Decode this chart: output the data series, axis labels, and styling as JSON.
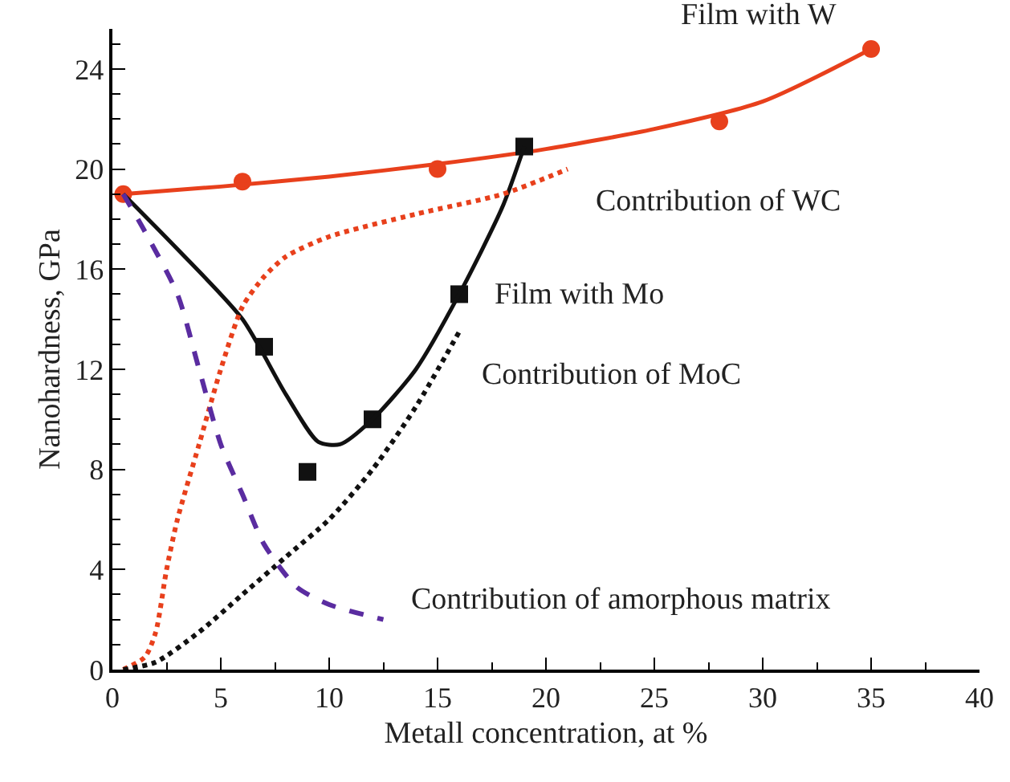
{
  "chart_data": {
    "type": "line",
    "xlabel": "Metall concentration, at %",
    "ylabel": "Nanohardness, GPa",
    "xlim": [
      0,
      40
    ],
    "xticks": [
      0,
      5,
      10,
      15,
      20,
      25,
      30,
      35,
      40
    ],
    "ylim": [
      0,
      25.6
    ],
    "yticks": [
      0,
      4,
      8,
      12,
      16,
      20,
      24
    ],
    "legend": false,
    "series": [
      {
        "name": "Film with W",
        "type": "scatter",
        "marker": "circle",
        "color": "#e8401c",
        "x": [
          0.5,
          6,
          15,
          28,
          35
        ],
        "values": [
          19,
          19.5,
          20,
          21.9,
          24.8
        ]
      },
      {
        "color": "#e8401c",
        "line_style": "solid",
        "x": [
          0.5,
          5,
          10,
          15,
          20,
          25,
          30,
          35
        ],
        "values": [
          19,
          19.3,
          19.7,
          20.2,
          20.8,
          21.6,
          22.7,
          24.8
        ]
      },
      {
        "name": "Film with Mo",
        "type": "scatter",
        "marker": "square",
        "color": "#111111",
        "x": [
          7,
          9,
          12,
          16,
          19
        ],
        "values": [
          12.9,
          7.9,
          10,
          15,
          20.9
        ]
      },
      {
        "color": "#111111",
        "line_style": "solid",
        "x": [
          0.5,
          3,
          6,
          8,
          9.5,
          10.5,
          12,
          14,
          16,
          18,
          19
        ],
        "values": [
          19,
          16.8,
          14,
          11,
          9.1,
          9,
          10,
          12,
          15,
          18.5,
          20.9
        ]
      },
      {
        "name": "Contribution of WC",
        "color": "#e8401c",
        "line_style": "dotted",
        "x": [
          0.5,
          1.5,
          2,
          2.5,
          3,
          4,
          5,
          6,
          7,
          8,
          10,
          14,
          18,
          21
        ],
        "values": [
          0,
          0.5,
          1.5,
          4,
          6,
          9,
          12,
          14.5,
          15.7,
          16.5,
          17.3,
          18.2,
          19,
          20
        ]
      },
      {
        "name": "Contribution of MoC",
        "color": "#111111",
        "line_style": "dotted",
        "x": [
          0.5,
          2,
          4,
          6,
          8,
          10,
          12,
          14,
          16
        ],
        "values": [
          0,
          0.3,
          1.5,
          3,
          4.5,
          6,
          8,
          10.5,
          13.5
        ]
      },
      {
        "name": "Contribution of amorphous matrix",
        "color": "#5a2ca0",
        "line_style": "dashed",
        "x": [
          0.5,
          1.5,
          3,
          4,
          5,
          6,
          7,
          8.5,
          10,
          12.5
        ],
        "values": [
          19,
          17.5,
          15,
          12,
          9,
          7,
          5,
          3.3,
          2.6,
          2
        ]
      }
    ]
  }
}
